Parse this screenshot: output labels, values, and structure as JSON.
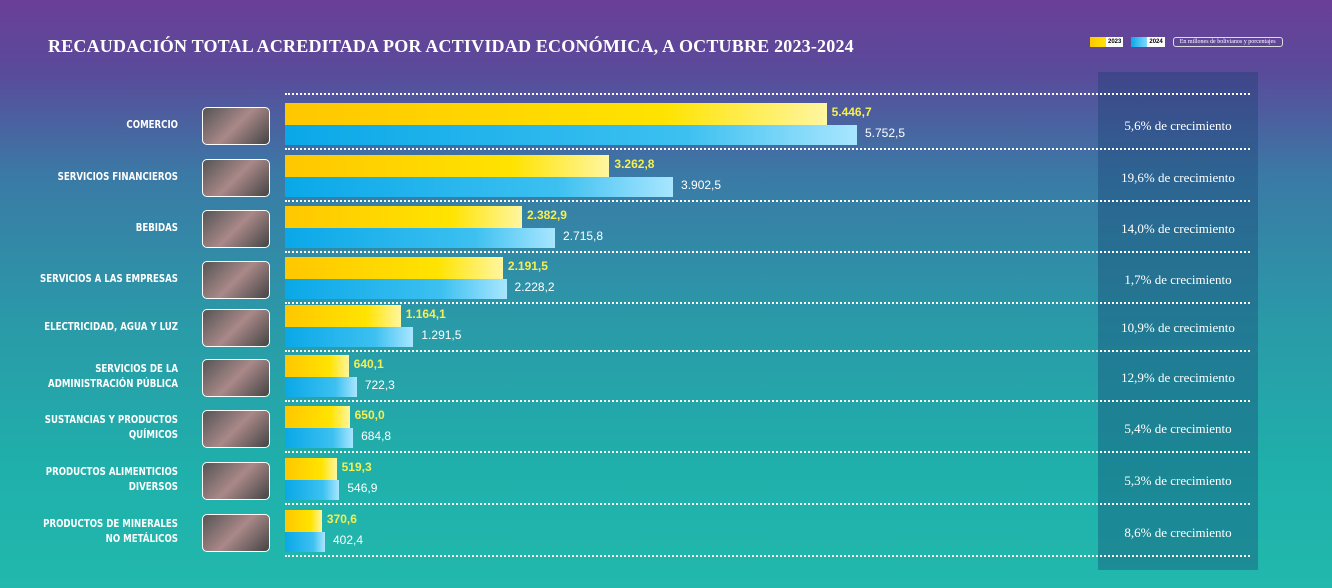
{
  "title": "RECAUDACIÓN TOTAL ACREDITADA POR ACTIVIDAD ECONÓMICA, A OCTUBRE 2023-2024",
  "legend": {
    "y2023": "2023",
    "y2024": "2024",
    "unit": "En millones de bolivianos y porcentajes"
  },
  "colors": {
    "y2023": "#ffd500",
    "y2024": "#1ab2ee"
  },
  "chart_data": {
    "type": "bar",
    "orientation": "horizontal",
    "title": "RECAUDACIÓN TOTAL ACREDITADA POR ACTIVIDAD ECONÓMICA, A OCTUBRE 2023-2024",
    "categories": [
      "COMERCIO",
      "SERVICIOS FINANCIEROS",
      "BEBIDAS",
      "SERVICIOS A LAS EMPRESAS",
      "ELECTRICIDAD, AGUA Y LUZ",
      "SERVICIOS DE LA ADMINISTRACIÓN PÚBLICA",
      "SUSTANCIAS Y PRODUCTOS QUÍMICOS",
      "PRODUCTOS ALIMENTICIOS DIVERSOS",
      "PRODUCTOS DE MINERALES NO METÁLICOS"
    ],
    "series": [
      {
        "name": "2023",
        "values": [
          5446.7,
          3262.8,
          2382.9,
          2191.5,
          1164.1,
          640.1,
          650.0,
          519.3,
          370.6
        ],
        "labels": [
          "5.446,7",
          "3.262,8",
          "2.382,9",
          "2.191,5",
          "1.164,1",
          "640,1",
          "650,0",
          "519,3",
          "370,6"
        ]
      },
      {
        "name": "2024",
        "values": [
          5752.5,
          3902.5,
          2715.8,
          2228.2,
          1291.5,
          722.3,
          684.8,
          546.9,
          402.4
        ],
        "labels": [
          "5.752,5",
          "3.902,5",
          "2.715,8",
          "2.228,2",
          "1.291,5",
          "722,3",
          "684,8",
          "546,9",
          "402,4"
        ]
      }
    ],
    "growth": [
      "5,6% de crecimiento",
      "19,6% de crecimiento",
      "14,0% de crecimiento",
      "1,7% de crecimiento",
      "10,9% de crecimiento",
      "12,9% de crecimiento",
      "5,4% de crecimiento",
      "5,3% de crecimiento",
      "8,6% de crecimiento"
    ],
    "legend_position": "top-right",
    "grid": false
  }
}
